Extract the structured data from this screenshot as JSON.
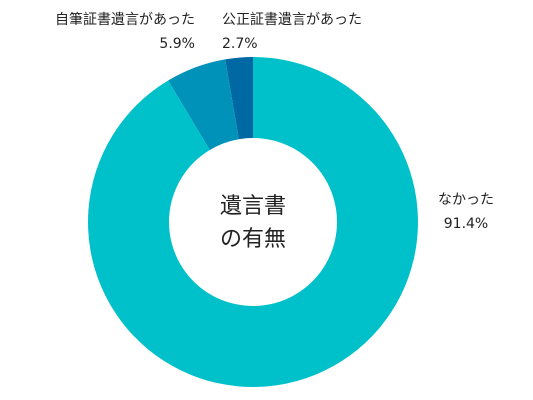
{
  "chart_data": {
    "type": "donut",
    "center_label": [
      "遺言書",
      "の有無"
    ],
    "categories": [
      "なかった",
      "自筆証書遺言があった",
      "公正証書遺言があった"
    ],
    "values": [
      91.4,
      5.9,
      2.7
    ],
    "value_labels": [
      "91.4%",
      "5.9%",
      "2.7%"
    ],
    "colors": [
      "#00c1c9",
      "#0092b9",
      "#0068a3"
    ]
  }
}
